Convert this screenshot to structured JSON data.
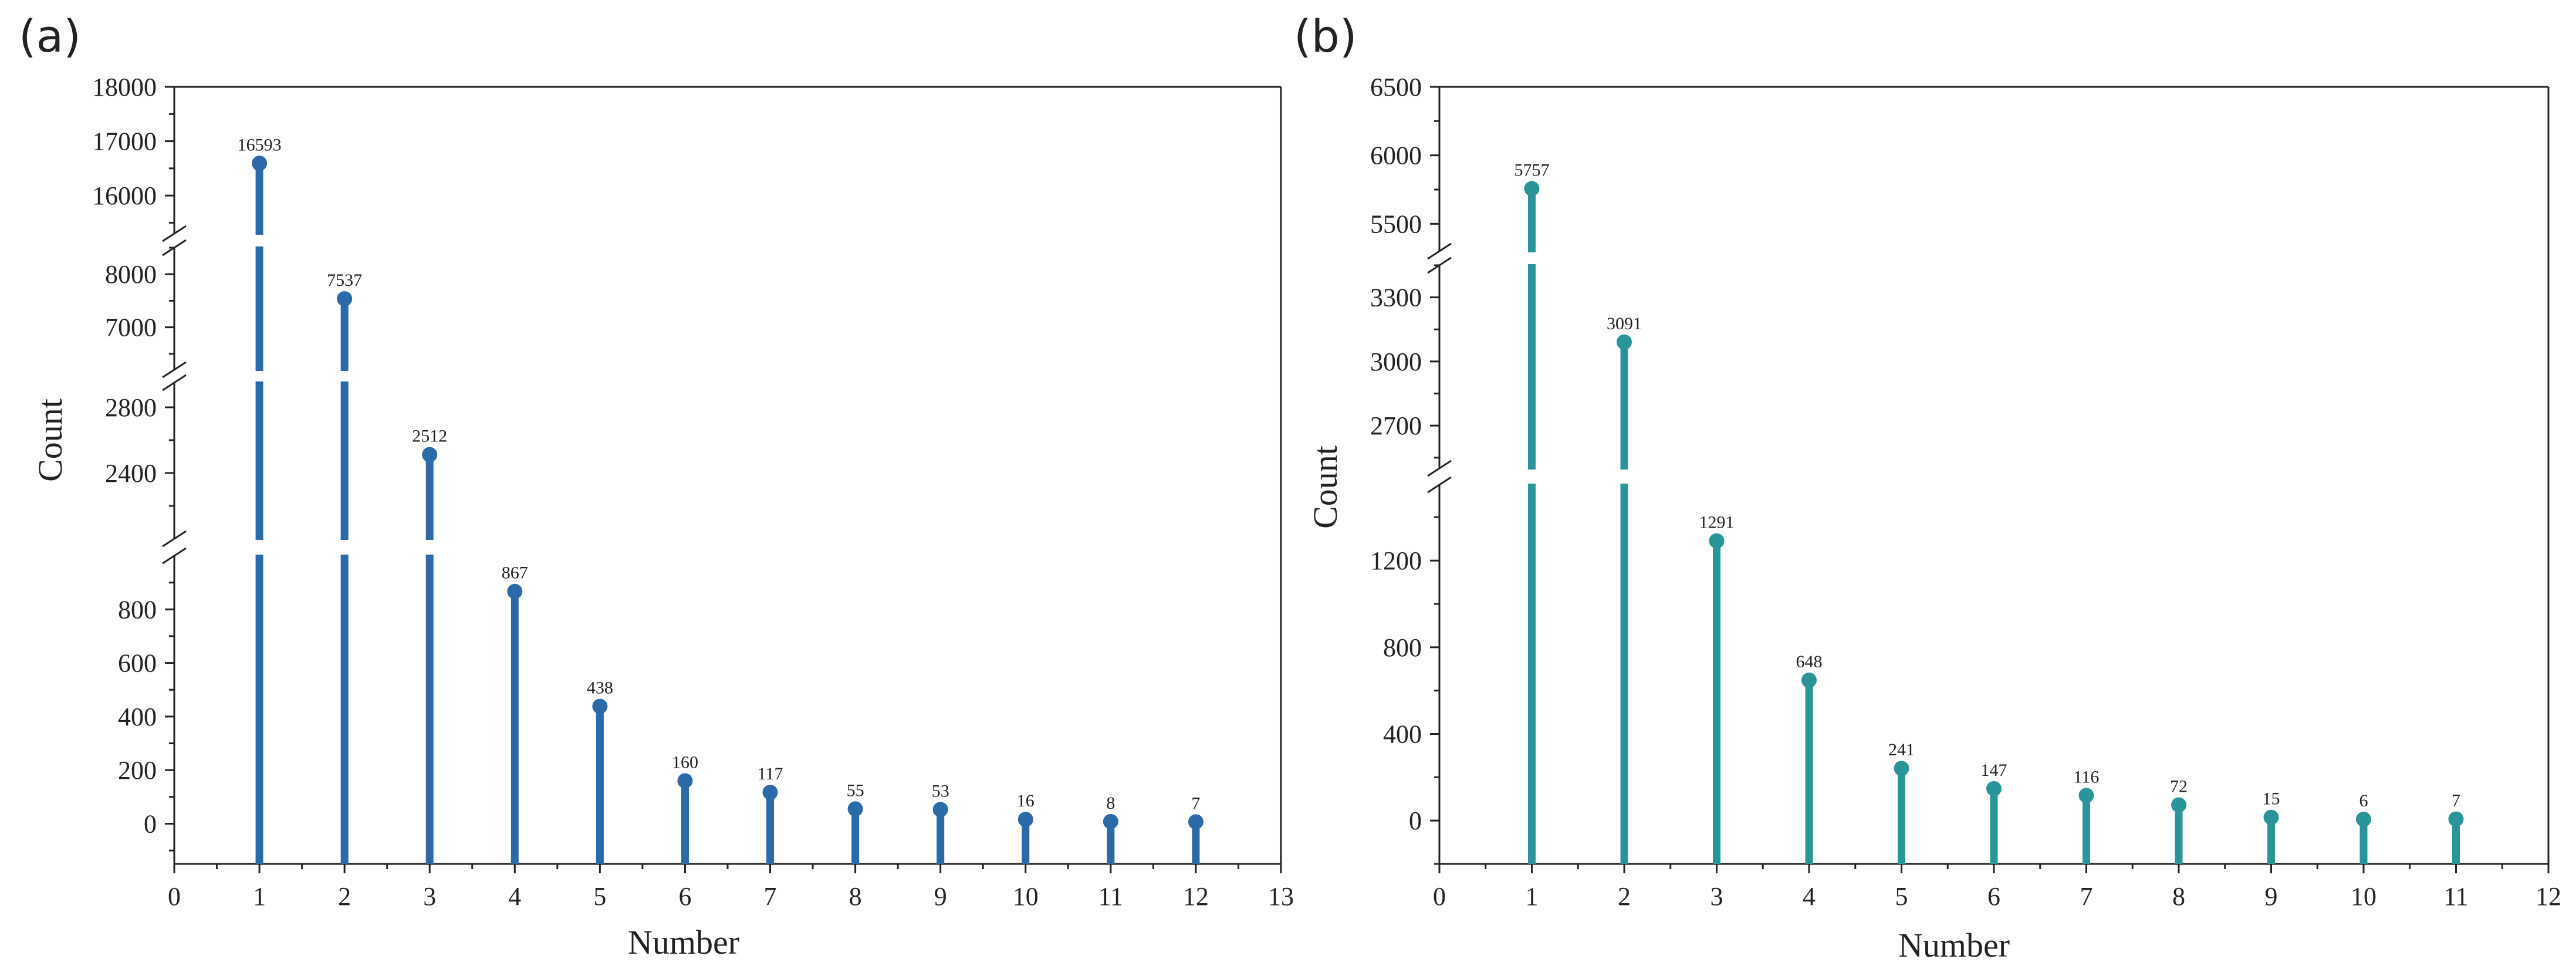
{
  "chart_data": [
    {
      "panel_label": "(a)",
      "type": "bar",
      "style": "lollipop",
      "color": "#2a6aa8",
      "xlabel": "Number",
      "ylabel": "Count",
      "xlim": [
        0,
        13
      ],
      "x_ticks": [
        0,
        1,
        2,
        3,
        4,
        5,
        6,
        7,
        8,
        9,
        10,
        11,
        12,
        13
      ],
      "x_tick_labels": [
        "0",
        "1",
        "2",
        "3",
        "4",
        "5",
        "6",
        "7",
        "8",
        "9",
        "10",
        "11",
        "12",
        "13"
      ],
      "y_segments": [
        {
          "range": [
            -150,
            1000
          ],
          "ticks": [
            0,
            200,
            400,
            600,
            800
          ],
          "tick_labels": [
            "0",
            "200",
            "400",
            "600",
            "800"
          ]
        },
        {
          "range": [
            2000,
            2950
          ],
          "ticks": [
            2400,
            2800
          ],
          "tick_labels": [
            "2400",
            "2800"
          ]
        },
        {
          "range": [
            6200,
            8500
          ],
          "ticks": [
            7000,
            8000
          ],
          "tick_labels": [
            "7000",
            "8000"
          ]
        },
        {
          "range": [
            15300,
            18000
          ],
          "ticks": [
            16000,
            17000,
            18000
          ],
          "tick_labels": [
            "16000",
            "17000",
            "18000"
          ]
        }
      ],
      "x": [
        1,
        2,
        3,
        4,
        5,
        6,
        7,
        8,
        9,
        10,
        11,
        12
      ],
      "values": [
        16593,
        7537,
        2512,
        867,
        438,
        160,
        117,
        55,
        53,
        16,
        8,
        7
      ],
      "value_labels": [
        "16593",
        "7537",
        "2512",
        "867",
        "438",
        "160",
        "117",
        "55",
        "53",
        "16",
        "8",
        "7"
      ]
    },
    {
      "panel_label": "(b)",
      "type": "bar",
      "style": "lollipop",
      "color": "#2a9598",
      "xlabel": "Number",
      "ylabel": "Count",
      "xlim": [
        0,
        12
      ],
      "x_ticks": [
        0,
        1,
        2,
        3,
        4,
        5,
        6,
        7,
        8,
        9,
        10,
        11,
        12
      ],
      "x_tick_labels": [
        "0",
        "1",
        "2",
        "3",
        "4",
        "5",
        "6",
        "7",
        "8",
        "9",
        "10",
        "11",
        "12"
      ],
      "y_segments": [
        {
          "range": [
            -200,
            1550
          ],
          "ticks": [
            0,
            400,
            800,
            1200
          ],
          "tick_labels": [
            "0",
            "400",
            "800",
            "1200"
          ]
        },
        {
          "range": [
            2500,
            3450
          ],
          "ticks": [
            2700,
            3000,
            3300
          ],
          "tick_labels": [
            "2700",
            "3000",
            "3300"
          ]
        },
        {
          "range": [
            5300,
            6500
          ],
          "ticks": [
            5500,
            6000,
            6500
          ],
          "tick_labels": [
            "5500",
            "6000",
            "6500"
          ]
        }
      ],
      "x": [
        1,
        2,
        3,
        4,
        5,
        6,
        7,
        8,
        9,
        10,
        11
      ],
      "values": [
        5757,
        3091,
        1291,
        648,
        241,
        147,
        116,
        72,
        15,
        6,
        7
      ],
      "value_labels": [
        "5757",
        "3091",
        "1291",
        "648",
        "241",
        "147",
        "116",
        "72",
        "15",
        "6",
        "7"
      ]
    }
  ]
}
